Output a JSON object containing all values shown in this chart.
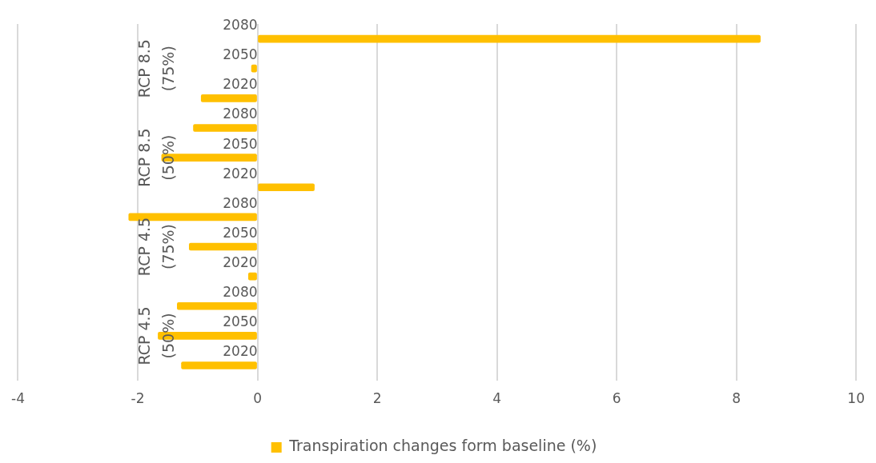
{
  "chart_data": {
    "type": "bar",
    "orientation": "horizontal",
    "categories": [
      "2080",
      "2050",
      "2020",
      "2080",
      "2050",
      "2020",
      "2080",
      "2050",
      "2020",
      "2080",
      "2050",
      "2020"
    ],
    "series": [
      {
        "name": "Transpiration changes form baseline (%)",
        "color": "#ffc000",
        "values": [
          8.4,
          -0.1,
          -0.94,
          -1.07,
          -1.6,
          0.95,
          -2.15,
          -1.14,
          -0.15,
          -1.34,
          -1.66,
          -1.27
        ]
      }
    ],
    "annotations": [
      "RCP 8.5 (75%)",
      "RCP 8.5 (50%)",
      "RCP 4.5 (75%)",
      "RCP 4.5 (50%)"
    ],
    "xlim": [
      -4,
      10
    ],
    "xticks": [
      -4,
      -2,
      0,
      2,
      4,
      6,
      8,
      10
    ],
    "grid": "x",
    "legend": "bottom"
  }
}
